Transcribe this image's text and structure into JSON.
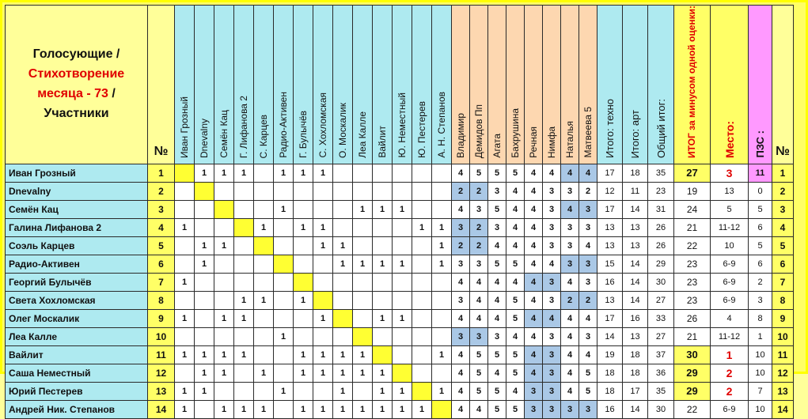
{
  "header": {
    "corner_line1": "Голосующие /",
    "corner_line2": "Стихотворение месяца - 73",
    "corner_line2_suffix": " /",
    "corner_line3": "Участники",
    "num_label": "№",
    "end_num_label": "№"
  },
  "voters": [
    "Иван Грозный",
    "Dnevalny",
    "Семён Кац",
    "Г. Лифанова 2",
    "С. Карцев",
    "Радио-Активен",
    "Г. Булычёв",
    "С. Хохломская",
    "О. Москалик",
    "Леа Калле",
    "Вайлит",
    "Ю. Неместный",
    "Ю. Пестерев",
    "А. Н. Степанов"
  ],
  "artists": [
    "Владимир",
    "Демидов Пп",
    "Агата",
    "Бахрушина",
    "Речная",
    "Нимфа",
    "Наталья",
    "Матвеева 5"
  ],
  "totals_headers": [
    "Итого: техно",
    "Итого: арт",
    "Общий итог:"
  ],
  "result_header": "ИТОГ за минусом одной оценки:",
  "place_header": "Место:",
  "pzs_header": "ПЗС :",
  "rows": [
    {
      "name": "Иван Грозный",
      "no": "1",
      "votes": [
        "",
        "1",
        "1",
        "1",
        "",
        "1",
        "1",
        "1",
        "",
        "",
        "",
        "",
        "",
        ""
      ],
      "art": [
        "4",
        "5",
        "5",
        "5",
        "4",
        "4",
        "4",
        "4"
      ],
      "shade": [
        0,
        0,
        0,
        0,
        0,
        0,
        1,
        1
      ],
      "techno": "17",
      "artv": "18",
      "total": "35",
      "result": "27",
      "result_hi": 1,
      "place": "3",
      "place_red": 1,
      "pzs": "11",
      "pzs_pink": 1
    },
    {
      "name": "Dnevalny",
      "no": "2",
      "votes": [
        "",
        "",
        "",
        "",
        "",
        "",
        "",
        "",
        "",
        "",
        "",
        "",
        "",
        ""
      ],
      "art": [
        "2",
        "2",
        "3",
        "4",
        "4",
        "3",
        "3",
        "2"
      ],
      "shade": [
        1,
        1,
        0,
        0,
        0,
        0,
        0,
        0
      ],
      "techno": "12",
      "artv": "11",
      "total": "23",
      "result": "19",
      "result_hi": 0,
      "place": "13",
      "place_red": 0,
      "pzs": "0",
      "pzs_pink": 0
    },
    {
      "name": "Семён Кац",
      "no": "3",
      "votes": [
        "",
        "",
        "",
        "",
        "",
        "1",
        "",
        "",
        "",
        "1",
        "1",
        "1",
        "",
        ""
      ],
      "art": [
        "4",
        "3",
        "5",
        "4",
        "4",
        "3",
        "4",
        "3"
      ],
      "shade": [
        0,
        0,
        0,
        0,
        0,
        0,
        1,
        1
      ],
      "techno": "17",
      "artv": "14",
      "total": "31",
      "result": "24",
      "result_hi": 0,
      "place": "5",
      "place_red": 0,
      "pzs": "5",
      "pzs_pink": 0
    },
    {
      "name": "Галина Лифанова 2",
      "no": "4",
      "votes": [
        "1",
        "",
        "",
        "",
        "1",
        "",
        "1",
        "1",
        "",
        "",
        "",
        "",
        "1",
        "1"
      ],
      "art": [
        "3",
        "2",
        "3",
        "4",
        "4",
        "3",
        "3",
        "3"
      ],
      "shade": [
        1,
        1,
        0,
        0,
        0,
        0,
        0,
        0
      ],
      "techno": "13",
      "artv": "13",
      "total": "26",
      "result": "21",
      "result_hi": 0,
      "place": "11-12",
      "place_red": 0,
      "pzs": "6",
      "pzs_pink": 0
    },
    {
      "name": "Соэль Карцев",
      "no": "5",
      "votes": [
        "",
        "1",
        "1",
        "",
        "",
        "",
        "",
        "1",
        "1",
        "",
        "",
        "",
        "",
        "1"
      ],
      "art": [
        "2",
        "2",
        "4",
        "4",
        "4",
        "3",
        "3",
        "4"
      ],
      "shade": [
        1,
        1,
        0,
        0,
        0,
        0,
        0,
        0
      ],
      "techno": "13",
      "artv": "13",
      "total": "26",
      "result": "22",
      "result_hi": 0,
      "place": "10",
      "place_red": 0,
      "pzs": "5",
      "pzs_pink": 0
    },
    {
      "name": "Радио-Активен",
      "no": "6",
      "votes": [
        "",
        "1",
        "",
        "",
        "",
        "",
        "",
        "",
        "1",
        "1",
        "1",
        "1",
        "",
        "1"
      ],
      "art": [
        "3",
        "3",
        "5",
        "5",
        "4",
        "4",
        "3",
        "3"
      ],
      "shade": [
        0,
        0,
        0,
        0,
        0,
        0,
        1,
        1
      ],
      "techno": "15",
      "artv": "14",
      "total": "29",
      "result": "23",
      "result_hi": 0,
      "place": "6-9",
      "place_red": 0,
      "pzs": "6",
      "pzs_pink": 0
    },
    {
      "name": "Георгий Булычёв",
      "no": "7",
      "votes": [
        "1",
        "",
        "",
        "",
        "",
        "",
        "",
        "",
        "",
        "",
        "",
        "",
        "",
        ""
      ],
      "art": [
        "4",
        "4",
        "4",
        "4",
        "4",
        "3",
        "4",
        "3"
      ],
      "shade": [
        0,
        0,
        0,
        0,
        1,
        1,
        0,
        0
      ],
      "techno": "16",
      "artv": "14",
      "total": "30",
      "result": "23",
      "result_hi": 0,
      "place": "6-9",
      "place_red": 0,
      "pzs": "2",
      "pzs_pink": 0
    },
    {
      "name": "Света Хохломская",
      "no": "8",
      "votes": [
        "",
        "",
        "",
        "1",
        "1",
        "",
        "1",
        "",
        "",
        "",
        "",
        "",
        "",
        ""
      ],
      "art": [
        "3",
        "4",
        "4",
        "5",
        "4",
        "3",
        "2",
        "2"
      ],
      "shade": [
        0,
        0,
        0,
        0,
        0,
        0,
        1,
        1
      ],
      "techno": "13",
      "artv": "14",
      "total": "27",
      "result": "23",
      "result_hi": 0,
      "place": "6-9",
      "place_red": 0,
      "pzs": "3",
      "pzs_pink": 0
    },
    {
      "name": "Олег Москалик",
      "no": "9",
      "votes": [
        "1",
        "",
        "1",
        "1",
        "",
        "",
        "",
        "1",
        "",
        "",
        "1",
        "1",
        "",
        ""
      ],
      "art": [
        "4",
        "4",
        "4",
        "5",
        "4",
        "4",
        "4",
        "4"
      ],
      "shade": [
        0,
        0,
        0,
        0,
        1,
        1,
        0,
        0
      ],
      "techno": "17",
      "artv": "16",
      "total": "33",
      "result": "26",
      "result_hi": 0,
      "place": "4",
      "place_red": 0,
      "pzs": "8",
      "pzs_pink": 0
    },
    {
      "name": "Леа Калле",
      "no": "10",
      "votes": [
        "",
        "",
        "",
        "",
        "",
        "1",
        "",
        "",
        "",
        "",
        "",
        "",
        "",
        ""
      ],
      "art": [
        "3",
        "3",
        "3",
        "4",
        "4",
        "3",
        "4",
        "3"
      ],
      "shade": [
        1,
        1,
        0,
        0,
        0,
        0,
        0,
        0
      ],
      "techno": "14",
      "artv": "13",
      "total": "27",
      "result": "21",
      "result_hi": 0,
      "place": "11-12",
      "place_red": 0,
      "pzs": "1",
      "pzs_pink": 0
    },
    {
      "name": "Вайлит",
      "no": "11",
      "votes": [
        "1",
        "1",
        "1",
        "1",
        "",
        "",
        "1",
        "1",
        "1",
        "1",
        "",
        "",
        "",
        "1"
      ],
      "art": [
        "4",
        "5",
        "5",
        "5",
        "4",
        "3",
        "4",
        "4"
      ],
      "shade": [
        0,
        0,
        0,
        0,
        1,
        1,
        0,
        0
      ],
      "techno": "19",
      "artv": "18",
      "total": "37",
      "result": "30",
      "result_hi": 1,
      "place": "1",
      "place_red": 1,
      "pzs": "10",
      "pzs_pink": 0
    },
    {
      "name": "Саша Неместный",
      "no": "12",
      "votes": [
        "",
        "1",
        "1",
        "",
        "1",
        "",
        "1",
        "1",
        "1",
        "1",
        "1",
        "",
        "",
        ""
      ],
      "art": [
        "4",
        "5",
        "4",
        "5",
        "4",
        "3",
        "4",
        "5"
      ],
      "shade": [
        0,
        0,
        0,
        0,
        1,
        1,
        0,
        0
      ],
      "techno": "18",
      "artv": "18",
      "total": "36",
      "result": "29",
      "result_hi": 1,
      "place": "2",
      "place_red": 1,
      "pzs": "10",
      "pzs_pink": 0
    },
    {
      "name": "Юрий Пестерев",
      "no": "13",
      "votes": [
        "1",
        "1",
        "",
        "",
        "",
        "1",
        "",
        "",
        "1",
        "",
        "1",
        "1",
        "",
        "1"
      ],
      "art": [
        "4",
        "5",
        "5",
        "4",
        "3",
        "3",
        "4",
        "5"
      ],
      "shade": [
        0,
        0,
        0,
        0,
        1,
        1,
        0,
        0
      ],
      "techno": "18",
      "artv": "17",
      "total": "35",
      "result": "29",
      "result_hi": 1,
      "place": "2",
      "place_red": 1,
      "pzs": "7",
      "pzs_pink": 0
    },
    {
      "name": "Андрей Ник. Степанов",
      "no": "14",
      "votes": [
        "1",
        "",
        "1",
        "1",
        "1",
        "",
        "1",
        "1",
        "1",
        "1",
        "1",
        "1",
        "1",
        ""
      ],
      "art": [
        "4",
        "4",
        "5",
        "5",
        "3",
        "3",
        "3",
        "3"
      ],
      "shade": [
        0,
        0,
        0,
        0,
        1,
        1,
        1,
        1
      ],
      "techno": "16",
      "artv": "14",
      "total": "30",
      "result": "22",
      "result_hi": 0,
      "place": "6-9",
      "place_red": 0,
      "pzs": "10",
      "pzs_pink": 0
    }
  ],
  "colors": {
    "sheet_bg": "#ffff66",
    "voter_header": "#aeeaf0",
    "artist_header": "#fdd7b0",
    "diagonal": "#ffff33",
    "score_shade": "#aac8e6",
    "pzs_pink": "#ff99ff",
    "red": "#e00000"
  }
}
